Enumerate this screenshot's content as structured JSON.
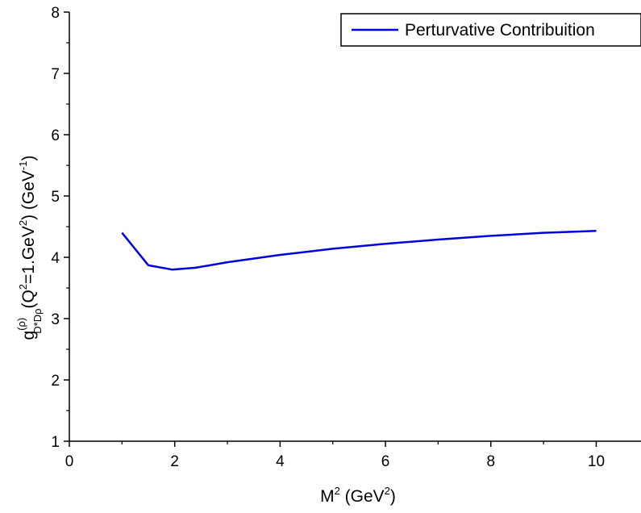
{
  "chart_data": {
    "type": "line",
    "title": "",
    "xlabel": {
      "base": "M",
      "sup1": "2",
      "mid": " (GeV",
      "sup2": "2",
      "end": ")"
    },
    "ylabel": {
      "g": "g",
      "g_sup": "(ρ)",
      "g_sub": "D*Dρ",
      "p1": "(Q",
      "q_sup": "2",
      "p2": "=1.GeV",
      "gev_sup": "2",
      "p3": ") (GeV",
      "inv_sup": "-1",
      "p4": ")"
    },
    "xlim": [
      0,
      10.85
    ],
    "ylim": [
      1,
      8
    ],
    "x_ticks": [
      "0",
      "2",
      "4",
      "6",
      "8",
      "10"
    ],
    "y_ticks": [
      "1",
      "2",
      "3",
      "4",
      "5",
      "6",
      "7",
      "8"
    ],
    "legend_position": "top-right",
    "grid": false,
    "series": [
      {
        "name": "Perturvative Contribuition",
        "color": "#0000dd",
        "x": [
          1.0,
          1.5,
          1.95,
          2.4,
          3.0,
          4.0,
          5.0,
          6.0,
          7.0,
          8.0,
          9.0,
          10.0
        ],
        "y": [
          4.4,
          3.87,
          3.8,
          3.83,
          3.92,
          4.04,
          4.14,
          4.22,
          4.29,
          4.35,
          4.4,
          4.43
        ]
      }
    ]
  }
}
